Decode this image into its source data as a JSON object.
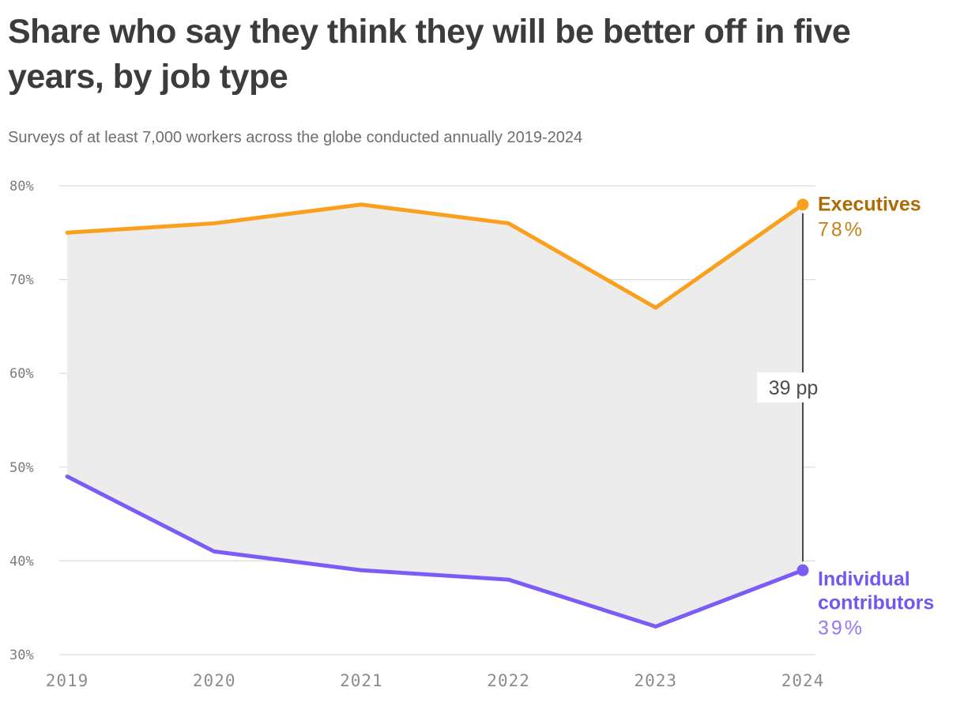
{
  "chart_data": {
    "type": "line",
    "title": "Share who say they think they will be better off in five years, by job type",
    "subtitle": "Surveys of at least 7,000 workers across the globe conducted annually 2019-2024",
    "x": [
      "2019",
      "2020",
      "2021",
      "2022",
      "2023",
      "2024"
    ],
    "ylim": [
      30,
      80
    ],
    "yticks": [
      30,
      40,
      50,
      60,
      70,
      80
    ],
    "ytick_suffix": "%",
    "grid": "horizontal",
    "grid_color": "#dadada",
    "band_fill": "#ececec",
    "legend_position": "right-end-labels",
    "series": [
      {
        "name": "Executives",
        "values": [
          75,
          76,
          78,
          76,
          67,
          78
        ],
        "color": "#F9A11F",
        "name_color": "#AB6C05",
        "value_color": "#C4821A",
        "end_label_lines": [
          "Executives"
        ],
        "end_value_label": "78%"
      },
      {
        "name": "Individual contributors",
        "values": [
          49,
          41,
          39,
          38,
          33,
          39
        ],
        "color": "#7B5CF5",
        "name_color": "#7457F0",
        "value_color": "#9678F4",
        "end_label_lines": [
          "Individual",
          "contributors"
        ],
        "end_value_label": "39%"
      }
    ],
    "annotation": {
      "text": "39 pp",
      "x": "2024",
      "between": [
        "Executives",
        "Individual contributors"
      ]
    }
  }
}
